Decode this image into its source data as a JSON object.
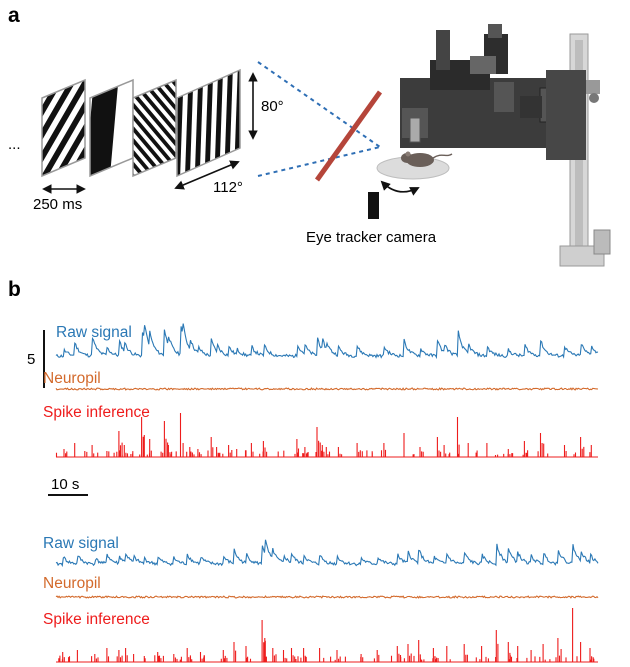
{
  "panel_a": {
    "letter": "a",
    "ellipsis": "...",
    "duration_label": "250 ms",
    "vertical_extent_label": "80°",
    "horizontal_extent_label": "112°",
    "camera_label": "Eye tracker camera",
    "colors": {
      "mirror": "#b5453a",
      "dashed_path": "#2f6fb5",
      "arrow": "#111111"
    },
    "gratings": [
      {
        "name": "grating-1",
        "angle": 30,
        "freq": 6
      },
      {
        "name": "grating-2",
        "angle": 5,
        "freq": 1.4
      },
      {
        "name": "grating-3",
        "angle": -40,
        "freq": 9
      },
      {
        "name": "grating-4",
        "angle": 2,
        "freq": 7
      }
    ]
  },
  "panel_b": {
    "letter": "b",
    "scale_y_label": "5",
    "scale_x_label": "10 s",
    "colors": {
      "raw": "#2a78b5",
      "neuropil": "#d36a2c",
      "spike": "#ee1c1c"
    },
    "blocks": [
      {
        "raw_label": "Raw signal",
        "neuropil_label": "Neuropil",
        "spike_label": "Spike inference",
        "raw_events": [
          [
            0.06,
            6
          ],
          [
            0.14,
            13
          ],
          [
            0.27,
            20
          ],
          [
            0.38,
            8
          ],
          [
            0.47,
            16
          ],
          [
            0.51,
            10
          ],
          [
            0.64,
            28
          ],
          [
            0.66,
            18
          ],
          [
            0.7,
            14
          ],
          [
            0.81,
            26
          ],
          [
            0.84,
            10
          ],
          [
            0.93,
            34
          ],
          [
            0.95,
            12
          ],
          [
            1.0,
            12
          ],
          [
            1.06,
            7
          ],
          [
            1.16,
            16
          ],
          [
            1.2,
            8
          ],
          [
            1.29,
            9
          ],
          [
            1.35,
            6
          ],
          [
            1.46,
            10
          ],
          [
            1.55,
            12
          ],
          [
            1.8,
            14
          ],
          [
            1.86,
            9
          ],
          [
            1.95,
            20
          ],
          [
            1.99,
            11
          ],
          [
            2.02,
            8
          ],
          [
            2.11,
            8
          ],
          [
            2.25,
            10
          ],
          [
            2.45,
            10
          ],
          [
            2.6,
            16
          ],
          [
            2.72,
            8
          ],
          [
            2.85,
            16
          ],
          [
            2.9,
            10
          ],
          [
            3.0,
            28
          ],
          [
            3.08,
            10
          ],
          [
            3.22,
            10
          ],
          [
            3.38,
            6
          ],
          [
            3.5,
            12
          ],
          [
            3.62,
            16
          ],
          [
            3.8,
            10
          ],
          [
            3.92,
            14
          ],
          [
            4.0,
            10
          ]
        ],
        "spikes": [
          [
            0.06,
            8
          ],
          [
            0.14,
            14
          ],
          [
            0.27,
            12
          ],
          [
            0.38,
            6
          ],
          [
            0.47,
            26
          ],
          [
            0.51,
            12
          ],
          [
            0.64,
            40
          ],
          [
            0.66,
            22
          ],
          [
            0.7,
            18
          ],
          [
            0.81,
            36
          ],
          [
            0.84,
            12
          ],
          [
            0.93,
            44
          ],
          [
            0.95,
            14
          ],
          [
            1.0,
            10
          ],
          [
            1.06,
            8
          ],
          [
            1.16,
            20
          ],
          [
            1.2,
            10
          ],
          [
            1.29,
            12
          ],
          [
            1.35,
            8
          ],
          [
            1.46,
            14
          ],
          [
            1.55,
            16
          ],
          [
            1.8,
            18
          ],
          [
            1.86,
            10
          ],
          [
            1.95,
            30
          ],
          [
            1.99,
            12
          ],
          [
            2.02,
            10
          ],
          [
            2.11,
            10
          ],
          [
            2.25,
            14
          ],
          [
            2.45,
            14
          ],
          [
            2.6,
            24
          ],
          [
            2.72,
            10
          ],
          [
            2.85,
            20
          ],
          [
            2.9,
            12
          ],
          [
            3.0,
            40
          ],
          [
            3.08,
            14
          ],
          [
            3.22,
            14
          ],
          [
            3.38,
            8
          ],
          [
            3.5,
            16
          ],
          [
            3.62,
            24
          ],
          [
            3.8,
            12
          ],
          [
            3.92,
            20
          ],
          [
            4.0,
            12
          ]
        ]
      },
      {
        "raw_label": "Raw signal",
        "neuropil_label": "Neuropil",
        "spike_label": "Spike inference",
        "raw_events": [
          [
            0.05,
            8
          ],
          [
            0.16,
            9
          ],
          [
            0.29,
            6
          ],
          [
            0.38,
            10
          ],
          [
            0.47,
            8
          ],
          [
            0.52,
            9
          ],
          [
            0.58,
            6
          ],
          [
            0.66,
            5
          ],
          [
            0.76,
            7
          ],
          [
            0.88,
            6
          ],
          [
            0.98,
            10
          ],
          [
            1.08,
            7
          ],
          [
            1.25,
            8
          ],
          [
            1.33,
            14
          ],
          [
            1.42,
            10
          ],
          [
            1.54,
            20
          ],
          [
            1.56,
            16
          ],
          [
            1.62,
            10
          ],
          [
            1.7,
            8
          ],
          [
            1.76,
            9
          ],
          [
            1.85,
            9
          ],
          [
            1.97,
            9
          ],
          [
            2.1,
            8
          ],
          [
            2.28,
            6
          ],
          [
            2.4,
            8
          ],
          [
            2.55,
            10
          ],
          [
            2.63,
            12
          ],
          [
            2.71,
            14
          ],
          [
            2.82,
            8
          ],
          [
            2.92,
            10
          ],
          [
            3.05,
            12
          ],
          [
            3.18,
            10
          ],
          [
            3.29,
            22
          ],
          [
            3.38,
            14
          ],
          [
            3.45,
            10
          ],
          [
            3.55,
            8
          ],
          [
            3.64,
            12
          ],
          [
            3.75,
            16
          ],
          [
            3.86,
            20
          ],
          [
            3.92,
            12
          ],
          [
            3.99,
            8
          ]
        ],
        "spikes": [
          [
            0.05,
            10
          ],
          [
            0.16,
            12
          ],
          [
            0.29,
            8
          ],
          [
            0.38,
            14
          ],
          [
            0.47,
            12
          ],
          [
            0.52,
            14
          ],
          [
            0.58,
            8
          ],
          [
            0.66,
            6
          ],
          [
            0.76,
            10
          ],
          [
            0.88,
            8
          ],
          [
            0.98,
            14
          ],
          [
            1.08,
            10
          ],
          [
            1.25,
            12
          ],
          [
            1.33,
            20
          ],
          [
            1.42,
            16
          ],
          [
            1.54,
            42
          ],
          [
            1.56,
            24
          ],
          [
            1.62,
            14
          ],
          [
            1.7,
            12
          ],
          [
            1.76,
            14
          ],
          [
            1.85,
            14
          ],
          [
            1.97,
            14
          ],
          [
            2.1,
            12
          ],
          [
            2.28,
            8
          ],
          [
            2.4,
            12
          ],
          [
            2.55,
            16
          ],
          [
            2.63,
            18
          ],
          [
            2.71,
            22
          ],
          [
            2.82,
            14
          ],
          [
            2.92,
            16
          ],
          [
            3.05,
            18
          ],
          [
            3.18,
            16
          ],
          [
            3.29,
            32
          ],
          [
            3.38,
            20
          ],
          [
            3.45,
            16
          ],
          [
            3.55,
            12
          ],
          [
            3.64,
            18
          ],
          [
            3.75,
            24
          ],
          [
            3.86,
            54
          ],
          [
            3.92,
            20
          ],
          [
            3.99,
            14
          ]
        ]
      }
    ]
  }
}
